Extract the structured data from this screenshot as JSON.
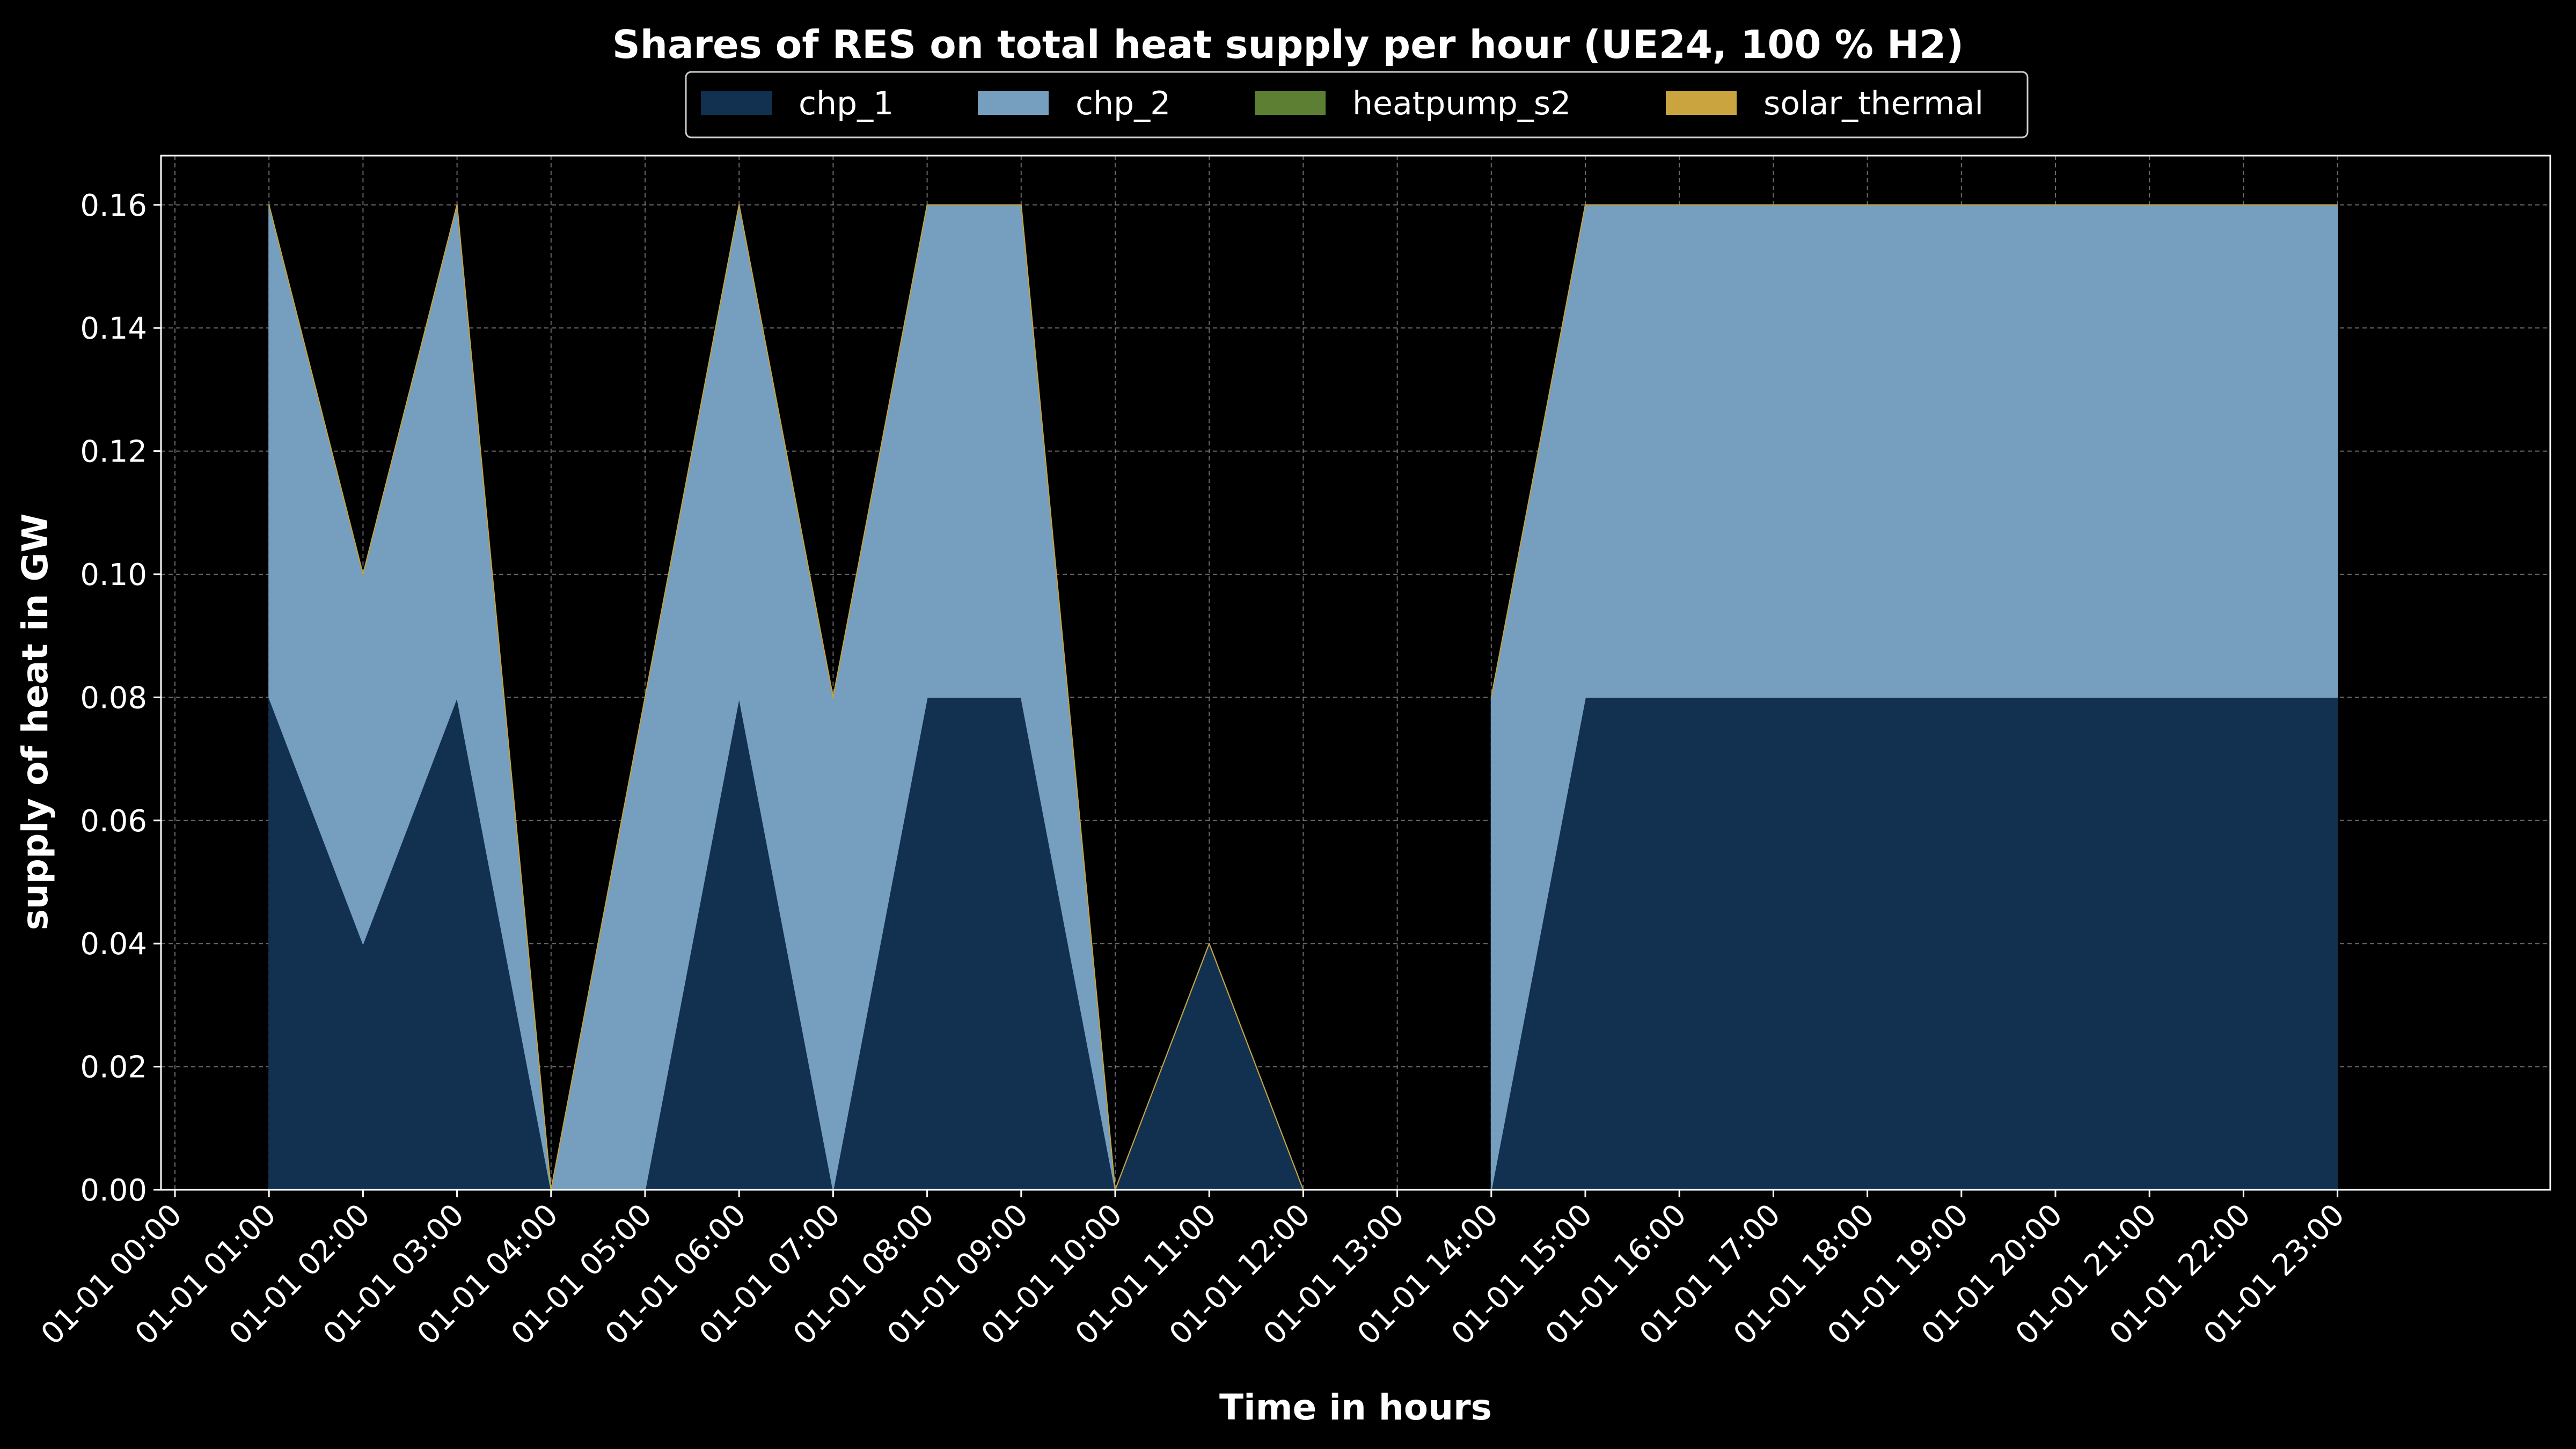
{
  "chart_data": {
    "type": "area",
    "stacked": true,
    "title": "Shares of RES on total heat supply per hour (UE24, 100 % H2)",
    "xlabel": "Time in hours",
    "ylabel": "supply of heat in GW",
    "ylim": [
      0,
      0.168
    ],
    "yticks": [
      "0.00",
      "0.02",
      "0.04",
      "0.06",
      "0.08",
      "0.10",
      "0.12",
      "0.14",
      "0.16"
    ],
    "x": [
      "01-01 00:00",
      "01-01 01:00",
      "01-01 02:00",
      "01-01 03:00",
      "01-01 04:00",
      "01-01 05:00",
      "01-01 06:00",
      "01-01 07:00",
      "01-01 08:00",
      "01-01 09:00",
      "01-01 10:00",
      "01-01 11:00",
      "01-01 12:00",
      "01-01 13:00",
      "01-01 14:00",
      "01-01 15:00",
      "01-01 16:00",
      "01-01 17:00",
      "01-01 18:00",
      "01-01 19:00",
      "01-01 20:00",
      "01-01 21:00",
      "01-01 22:00",
      "01-01 23:00"
    ],
    "series": [
      {
        "name": "chp_1",
        "color": "#12304f",
        "values": [
          null,
          0.08,
          0.04,
          0.08,
          0,
          0,
          0.08,
          0,
          0.08,
          0.08,
          0,
          0.04,
          0,
          null,
          0,
          0.08,
          0.08,
          0.08,
          0.08,
          0.08,
          0.08,
          0.08,
          0.08,
          0.08
        ]
      },
      {
        "name": "chp_2",
        "color": "#759ebf",
        "values": [
          null,
          0.08,
          0.06,
          0.08,
          0,
          0.08,
          0.08,
          0.08,
          0.08,
          0.08,
          0,
          0,
          0,
          null,
          0.08,
          0.08,
          0.08,
          0.08,
          0.08,
          0.08,
          0.08,
          0.08,
          0.08,
          0.08
        ]
      },
      {
        "name": "heatpump_s2",
        "color": "#5c7f34",
        "values": [
          null,
          0,
          0,
          0,
          0,
          0,
          0,
          0,
          0,
          0,
          0,
          0,
          0,
          null,
          0,
          0,
          0,
          0,
          0,
          0,
          0,
          0,
          0,
          0
        ]
      },
      {
        "name": "solar_thermal",
        "color": "#c9a43f",
        "values": [
          null,
          0,
          0,
          0,
          0,
          0,
          0,
          0,
          0,
          0,
          0,
          0,
          0,
          null,
          0,
          0,
          0,
          0,
          0,
          0,
          0,
          0,
          0,
          0
        ]
      }
    ],
    "grid": true,
    "legend": "top-center",
    "background": "#000000"
  }
}
